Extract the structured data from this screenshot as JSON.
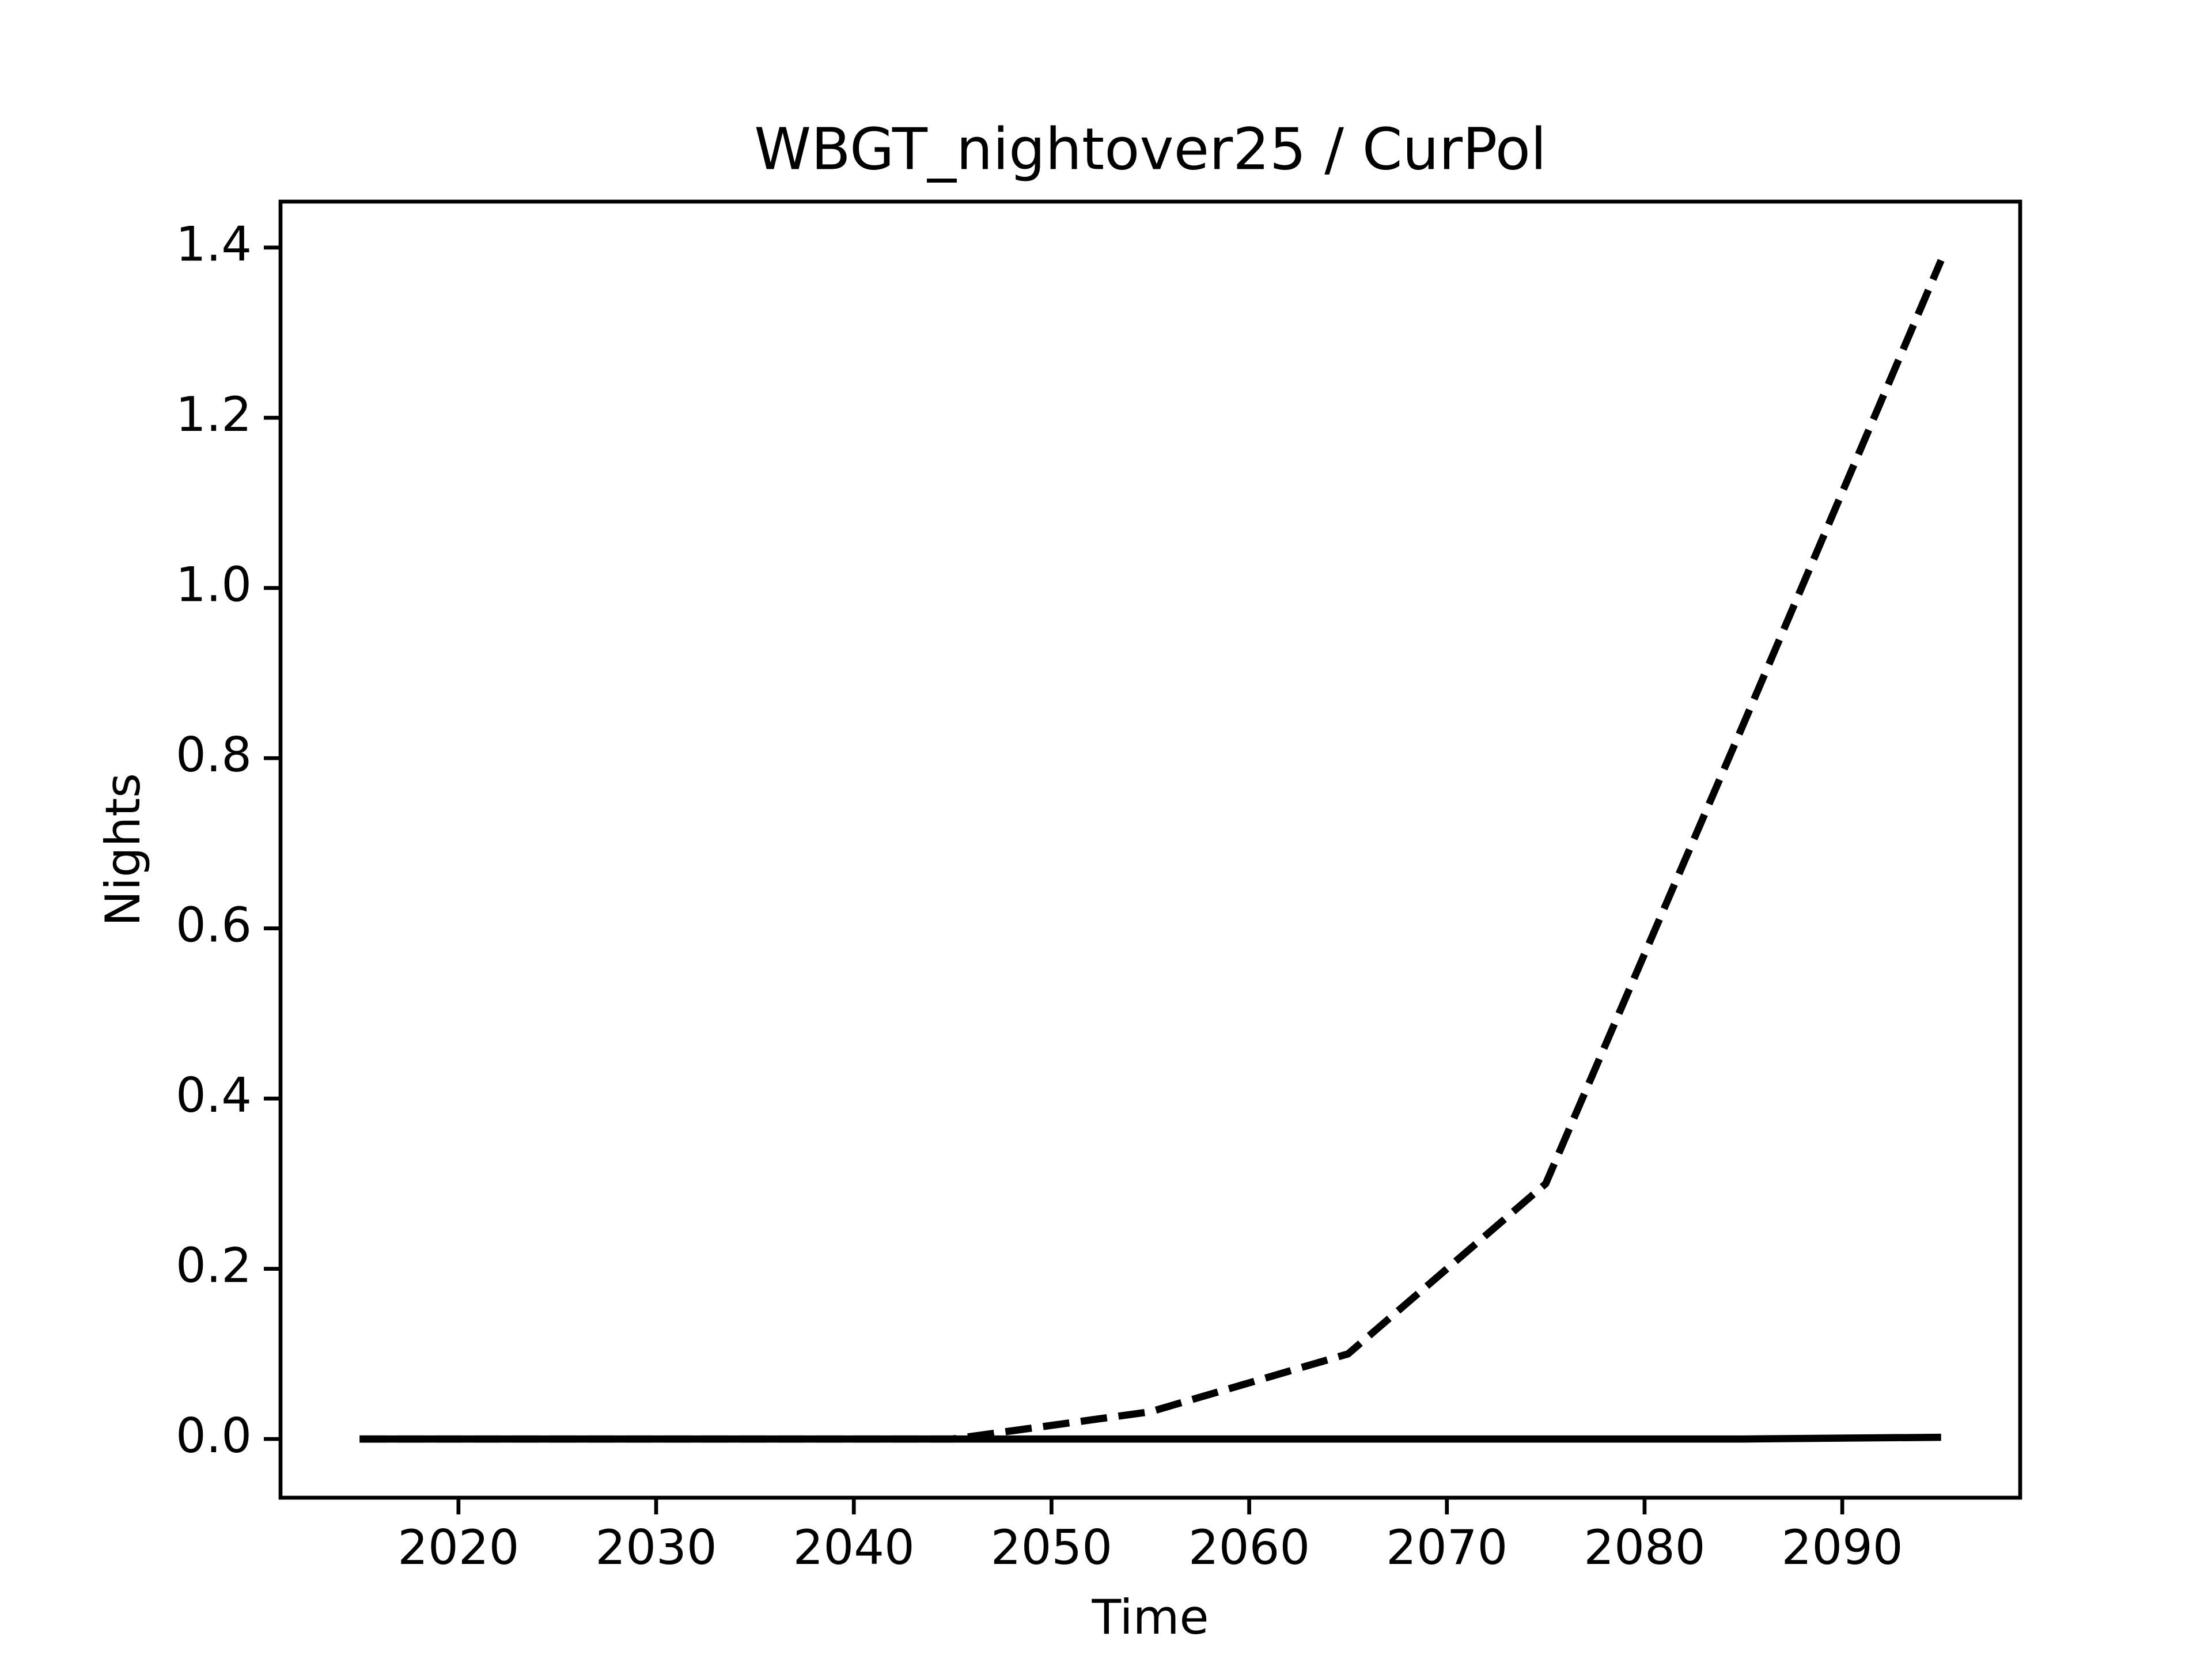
{
  "chart_data": {
    "type": "line",
    "title": "WBGT_nightover25 / CurPol",
    "xlabel": "Time",
    "ylabel": "Nights",
    "x": [
      2015,
      2025,
      2035,
      2045,
      2055,
      2065,
      2075,
      2085,
      2095
    ],
    "series": [
      {
        "color": "#000000",
        "linestyle": "dashed",
        "values": [
          0,
          0,
          0,
          0,
          0.032,
          0.1,
          0.3,
          0.84,
          1.385
        ]
      },
      {
        "color": "#000000",
        "linestyle": "solid",
        "values": [
          0,
          0,
          0,
          0,
          0,
          0,
          0,
          0,
          0.002
        ]
      }
    ],
    "xlim": [
      2011,
      2099
    ],
    "xticks": [
      2020,
      2030,
      2040,
      2050,
      2060,
      2070,
      2080,
      2090
    ],
    "ylim": [
      -0.069,
      1.454
    ],
    "yticks": [
      {
        "value": 0,
        "label": "0.0"
      },
      0.2,
      0.4,
      0.6,
      0.8,
      {
        "value": 1,
        "label": "1.0"
      },
      1.2,
      1.4
    ],
    "grid": false
  }
}
